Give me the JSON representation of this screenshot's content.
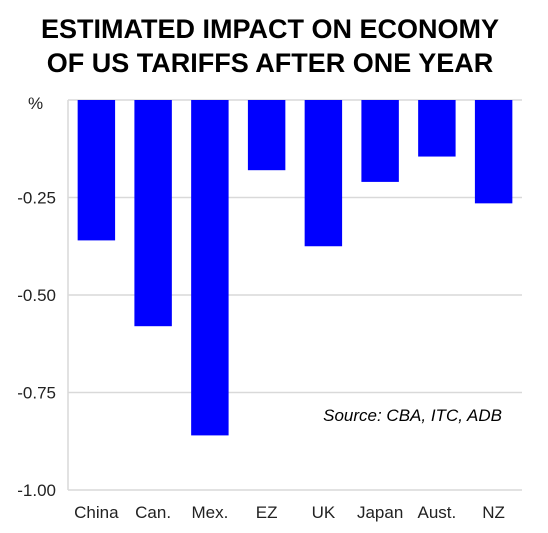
{
  "chart_data": {
    "type": "bar",
    "title_lines": [
      "ESTIMATED IMPACT ON ECONOMY",
      "OF US TARIFFS AFTER ONE YEAR"
    ],
    "ylabel": "%",
    "categories": [
      "China",
      "Can.",
      "Mex.",
      "EZ",
      "UK",
      "Japan",
      "Aust.",
      "NZ"
    ],
    "values": [
      -0.36,
      -0.58,
      -0.86,
      -0.18,
      -0.375,
      -0.21,
      -0.145,
      -0.265
    ],
    "ylim": [
      -1.0,
      0.0
    ],
    "yticks": [
      0.0,
      -0.25,
      -0.5,
      -0.75,
      -1.0
    ],
    "ytick_labels": [
      "",
      "-0.25",
      "-0.50",
      "-0.75",
      "-1.00"
    ],
    "grid": true,
    "bar_color": "#0000ff",
    "grid_color": "#d9d9d9",
    "source": "Source: CBA, ITC, ADB"
  }
}
